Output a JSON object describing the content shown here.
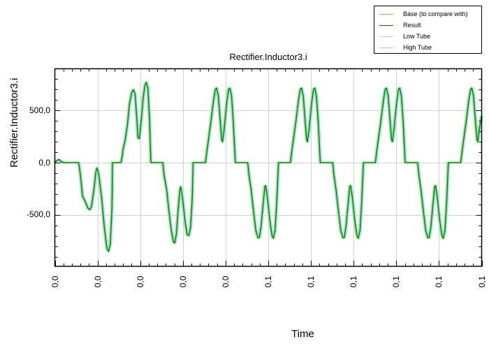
{
  "legend": {
    "items": [
      {
        "label": "Base (to compare with)",
        "color": "#f0a030"
      },
      {
        "label": "Result",
        "color": "#007a00"
      },
      {
        "label": "Low Tube",
        "color": "#a8d8e8"
      },
      {
        "label": "High Tube",
        "color": "#90e890"
      }
    ]
  },
  "chart_data": {
    "type": "line",
    "title": "Rectifier.Inductor3.i",
    "xlabel": "Time",
    "ylabel": "Rectifier.Inductor3.i",
    "ylim": [
      -990,
      900
    ],
    "grid": true,
    "legend_position": "top-right (outside plot)",
    "y_ticks": [
      {
        "value": 500,
        "label": "500,0"
      },
      {
        "value": 0,
        "label": "0,0"
      },
      {
        "value": -500,
        "label": "-500,0"
      }
    ],
    "x_tick_labels": [
      "0,0",
      "0,0",
      "0,0",
      "0,0",
      "0,0",
      "0,1",
      "0,1",
      "0,1",
      "0,1",
      "0,1",
      "0,1"
    ],
    "x_tick_count": 11,
    "series": [
      {
        "name": "Result",
        "note": "Low Tube and High Tube envelopes overlap Result; Base not visible",
        "points_x_fraction_y_value": [
          [
            0.0,
            0
          ],
          [
            0.005,
            20
          ],
          [
            0.01,
            30
          ],
          [
            0.015,
            10
          ],
          [
            0.02,
            0
          ],
          [
            0.056,
            0
          ],
          [
            0.06,
            -120
          ],
          [
            0.065,
            -320
          ],
          [
            0.072,
            -380
          ],
          [
            0.078,
            -440
          ],
          [
            0.082,
            -450
          ],
          [
            0.086,
            -420
          ],
          [
            0.092,
            -250
          ],
          [
            0.096,
            -90
          ],
          [
            0.099,
            -50
          ],
          [
            0.103,
            -110
          ],
          [
            0.11,
            -350
          ],
          [
            0.116,
            -620
          ],
          [
            0.122,
            -820
          ],
          [
            0.126,
            -850
          ],
          [
            0.13,
            -780
          ],
          [
            0.134,
            -420
          ],
          [
            0.135,
            0
          ],
          [
            0.155,
            0
          ],
          [
            0.158,
            60
          ],
          [
            0.16,
            130
          ],
          [
            0.165,
            220
          ],
          [
            0.17,
            360
          ],
          [
            0.175,
            560
          ],
          [
            0.18,
            670
          ],
          [
            0.184,
            700
          ],
          [
            0.188,
            660
          ],
          [
            0.192,
            430
          ],
          [
            0.195,
            240
          ],
          [
            0.198,
            230
          ],
          [
            0.202,
            380
          ],
          [
            0.207,
            620
          ],
          [
            0.211,
            740
          ],
          [
            0.214,
            770
          ],
          [
            0.218,
            720
          ],
          [
            0.222,
            420
          ],
          [
            0.225,
            0
          ],
          [
            0.253,
            0
          ],
          [
            0.256,
            -120
          ],
          [
            0.262,
            -260
          ],
          [
            0.268,
            -480
          ],
          [
            0.273,
            -650
          ],
          [
            0.278,
            -760
          ],
          [
            0.281,
            -770
          ],
          [
            0.285,
            -680
          ],
          [
            0.289,
            -450
          ],
          [
            0.293,
            -260
          ],
          [
            0.295,
            -230
          ],
          [
            0.299,
            -330
          ],
          [
            0.305,
            -560
          ],
          [
            0.31,
            -690
          ],
          [
            0.314,
            -700
          ],
          [
            0.318,
            -620
          ],
          [
            0.322,
            -350
          ],
          [
            0.324,
            0
          ],
          [
            0.353,
            0
          ],
          [
            0.356,
            100
          ],
          [
            0.36,
            220
          ],
          [
            0.366,
            400
          ],
          [
            0.372,
            600
          ],
          [
            0.376,
            700
          ],
          [
            0.379,
            715
          ],
          [
            0.383,
            640
          ],
          [
            0.387,
            430
          ],
          [
            0.391,
            220
          ],
          [
            0.393,
            200
          ],
          [
            0.397,
            330
          ],
          [
            0.403,
            580
          ],
          [
            0.407,
            700
          ],
          [
            0.41,
            715
          ],
          [
            0.414,
            640
          ],
          [
            0.418,
            400
          ],
          [
            0.423,
            0
          ],
          [
            0.452,
            0
          ],
          [
            0.455,
            -120
          ],
          [
            0.46,
            -260
          ],
          [
            0.466,
            -480
          ],
          [
            0.471,
            -650
          ],
          [
            0.476,
            -720
          ],
          [
            0.479,
            -720
          ],
          [
            0.483,
            -620
          ],
          [
            0.488,
            -400
          ],
          [
            0.492,
            -230
          ],
          [
            0.494,
            -220
          ],
          [
            0.498,
            -330
          ],
          [
            0.504,
            -560
          ],
          [
            0.509,
            -700
          ],
          [
            0.512,
            -725
          ],
          [
            0.516,
            -650
          ],
          [
            0.52,
            -380
          ],
          [
            0.524,
            0
          ],
          [
            0.552,
            0
          ],
          [
            0.555,
            100
          ],
          [
            0.559,
            220
          ],
          [
            0.565,
            400
          ],
          [
            0.571,
            600
          ],
          [
            0.575,
            700
          ],
          [
            0.578,
            715
          ],
          [
            0.582,
            640
          ],
          [
            0.586,
            430
          ],
          [
            0.59,
            220
          ],
          [
            0.592,
            200
          ],
          [
            0.596,
            330
          ],
          [
            0.602,
            580
          ],
          [
            0.606,
            700
          ],
          [
            0.609,
            715
          ],
          [
            0.613,
            640
          ],
          [
            0.617,
            400
          ],
          [
            0.622,
            0
          ],
          [
            0.651,
            0
          ],
          [
            0.654,
            -120
          ],
          [
            0.659,
            -260
          ],
          [
            0.665,
            -480
          ],
          [
            0.67,
            -650
          ],
          [
            0.675,
            -720
          ],
          [
            0.678,
            -720
          ],
          [
            0.682,
            -620
          ],
          [
            0.687,
            -400
          ],
          [
            0.691,
            -230
          ],
          [
            0.693,
            -220
          ],
          [
            0.697,
            -330
          ],
          [
            0.703,
            -560
          ],
          [
            0.708,
            -700
          ],
          [
            0.711,
            -725
          ],
          [
            0.715,
            -650
          ],
          [
            0.719,
            -380
          ],
          [
            0.723,
            0
          ],
          [
            0.751,
            0
          ],
          [
            0.754,
            100
          ],
          [
            0.758,
            220
          ],
          [
            0.764,
            400
          ],
          [
            0.77,
            600
          ],
          [
            0.774,
            700
          ],
          [
            0.777,
            715
          ],
          [
            0.781,
            640
          ],
          [
            0.785,
            430
          ],
          [
            0.789,
            220
          ],
          [
            0.791,
            200
          ],
          [
            0.795,
            330
          ],
          [
            0.801,
            580
          ],
          [
            0.805,
            700
          ],
          [
            0.808,
            715
          ],
          [
            0.812,
            640
          ],
          [
            0.816,
            400
          ],
          [
            0.821,
            0
          ],
          [
            0.85,
            0
          ],
          [
            0.853,
            -120
          ],
          [
            0.858,
            -260
          ],
          [
            0.864,
            -480
          ],
          [
            0.869,
            -650
          ],
          [
            0.874,
            -720
          ],
          [
            0.877,
            -720
          ],
          [
            0.881,
            -620
          ],
          [
            0.886,
            -400
          ],
          [
            0.89,
            -230
          ],
          [
            0.892,
            -220
          ],
          [
            0.896,
            -330
          ],
          [
            0.902,
            -560
          ],
          [
            0.907,
            -700
          ],
          [
            0.91,
            -725
          ],
          [
            0.914,
            -650
          ],
          [
            0.918,
            -380
          ],
          [
            0.922,
            0
          ],
          [
            0.951,
            0
          ],
          [
            0.954,
            100
          ],
          [
            0.958,
            220
          ],
          [
            0.964,
            400
          ],
          [
            0.97,
            600
          ],
          [
            0.974,
            700
          ],
          [
            0.977,
            715
          ],
          [
            0.981,
            640
          ],
          [
            0.985,
            430
          ],
          [
            0.989,
            220
          ],
          [
            0.991,
            200
          ],
          [
            0.995,
            330
          ],
          [
            1.0,
            450
          ]
        ]
      }
    ]
  }
}
